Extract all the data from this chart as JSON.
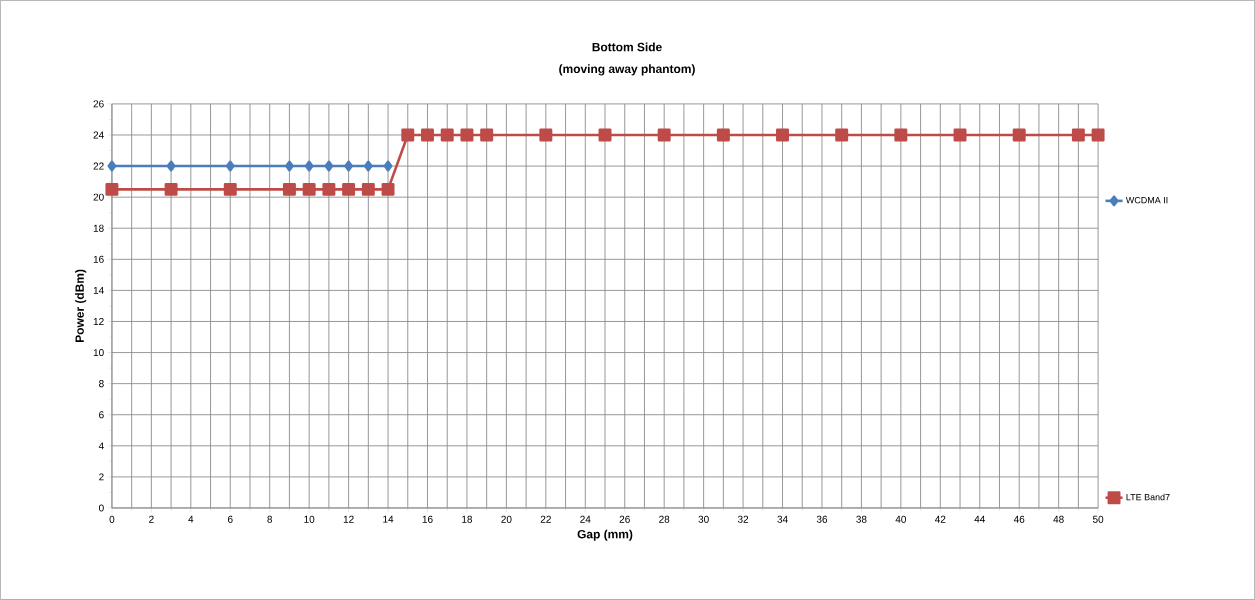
{
  "chart_data": {
    "type": "line",
    "title": "Bottom Side",
    "subtitle": "(moving away phantom)",
    "xlabel": "Gap (mm)",
    "ylabel": "Power (dBm)",
    "xlim": [
      0,
      50
    ],
    "xticks": [
      0,
      2,
      4,
      6,
      8,
      10,
      12,
      14,
      16,
      18,
      20,
      22,
      24,
      26,
      28,
      30,
      32,
      34,
      36,
      38,
      40,
      42,
      44,
      46,
      48,
      50
    ],
    "ylim": [
      0,
      26
    ],
    "yticks": [
      0,
      2,
      4,
      6,
      8,
      10,
      12,
      14,
      16,
      18,
      20,
      22,
      24,
      26
    ],
    "grid": true,
    "legend": "right",
    "series": [
      {
        "name": "WCDMA II",
        "color": "#4a7ebb",
        "marker": "diamond",
        "x": [
          0,
          3,
          6,
          9,
          10,
          11,
          12,
          13,
          14
        ],
        "values": [
          22,
          22,
          22,
          22,
          22,
          22,
          22,
          22,
          22
        ]
      },
      {
        "name": "LTE Band7",
        "color": "#be4b48",
        "marker": "square",
        "x": [
          0,
          3,
          6,
          9,
          10,
          11,
          12,
          13,
          14,
          15,
          16,
          17,
          18,
          19,
          22,
          25,
          28,
          31,
          34,
          37,
          40,
          43,
          46,
          49,
          50
        ],
        "values": [
          20.5,
          20.5,
          20.5,
          20.5,
          20.5,
          20.5,
          20.5,
          20.5,
          20.5,
          24,
          24,
          24,
          24,
          24,
          24,
          24,
          24,
          24,
          24,
          24,
          24,
          24,
          24,
          24,
          24
        ]
      }
    ]
  }
}
